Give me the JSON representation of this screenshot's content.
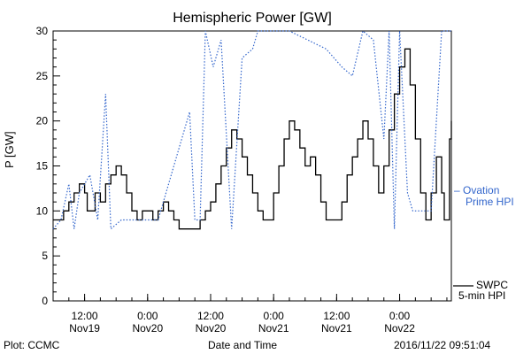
{
  "chart_data": {
    "type": "line",
    "title": "Hemispheric Power [GW]",
    "ylabel": "P [GW]",
    "xlabel": "Date and Time",
    "ylim": [
      0,
      30
    ],
    "yticks": [
      0,
      5,
      10,
      15,
      20,
      25,
      30
    ],
    "xlim": [
      "2016-11-19 06:00",
      "2016-11-22 09:51"
    ],
    "xticks": [
      {
        "t": "2016-11-19 12:00",
        "time": "12:00",
        "date": "Nov19"
      },
      {
        "t": "2016-11-20 00:00",
        "time": "0:00",
        "date": "Nov20"
      },
      {
        "t": "2016-11-20 12:00",
        "time": "12:00",
        "date": "Nov20"
      },
      {
        "t": "2016-11-21 00:00",
        "time": "0:00",
        "date": "Nov21"
      },
      {
        "t": "2016-11-21 12:00",
        "time": "12:00",
        "date": "Nov21"
      },
      {
        "t": "2016-11-22 00:00",
        "time": "0:00",
        "date": "Nov22"
      }
    ],
    "series": [
      {
        "name": "SWPC 5-min HPI",
        "color": "#000000",
        "style": "solid-step",
        "points": [
          [
            "2016-11-19 06:00",
            9
          ],
          [
            "2016-11-19 07:00",
            9
          ],
          [
            "2016-11-19 08:00",
            10
          ],
          [
            "2016-11-19 09:00",
            11
          ],
          [
            "2016-11-19 10:00",
            12
          ],
          [
            "2016-11-19 11:00",
            13
          ],
          [
            "2016-11-19 12:00",
            12
          ],
          [
            "2016-11-19 12:30",
            10
          ],
          [
            "2016-11-19 14:00",
            12
          ],
          [
            "2016-11-19 15:00",
            11
          ],
          [
            "2016-11-19 16:00",
            13
          ],
          [
            "2016-11-19 17:00",
            14
          ],
          [
            "2016-11-19 18:00",
            15
          ],
          [
            "2016-11-19 19:00",
            14
          ],
          [
            "2016-11-19 20:00",
            12
          ],
          [
            "2016-11-19 21:00",
            10
          ],
          [
            "2016-11-19 22:00",
            9
          ],
          [
            "2016-11-19 23:00",
            10
          ],
          [
            "2016-11-20 00:00",
            10
          ],
          [
            "2016-11-20 01:00",
            9
          ],
          [
            "2016-11-20 02:00",
            10
          ],
          [
            "2016-11-20 03:00",
            11
          ],
          [
            "2016-11-20 04:00",
            10
          ],
          [
            "2016-11-20 05:00",
            9
          ],
          [
            "2016-11-20 06:00",
            8
          ],
          [
            "2016-11-20 09:00",
            8
          ],
          [
            "2016-11-20 10:00",
            9
          ],
          [
            "2016-11-20 11:00",
            10
          ],
          [
            "2016-11-20 12:00",
            11
          ],
          [
            "2016-11-20 13:00",
            13
          ],
          [
            "2016-11-20 14:00",
            15
          ],
          [
            "2016-11-20 15:00",
            17
          ],
          [
            "2016-11-20 16:00",
            19
          ],
          [
            "2016-11-20 17:00",
            18
          ],
          [
            "2016-11-20 18:00",
            16
          ],
          [
            "2016-11-20 19:00",
            14
          ],
          [
            "2016-11-20 20:00",
            12
          ],
          [
            "2016-11-20 21:00",
            10
          ],
          [
            "2016-11-20 22:00",
            9
          ],
          [
            "2016-11-21 00:00",
            12
          ],
          [
            "2016-11-21 01:00",
            15
          ],
          [
            "2016-11-21 02:00",
            18
          ],
          [
            "2016-11-21 03:00",
            20
          ],
          [
            "2016-11-21 04:00",
            19
          ],
          [
            "2016-11-21 05:00",
            17
          ],
          [
            "2016-11-21 06:00",
            15
          ],
          [
            "2016-11-21 07:00",
            16
          ],
          [
            "2016-11-21 08:00",
            14
          ],
          [
            "2016-11-21 09:00",
            11
          ],
          [
            "2016-11-21 10:00",
            9
          ],
          [
            "2016-11-21 12:00",
            9
          ],
          [
            "2016-11-21 13:00",
            11
          ],
          [
            "2016-11-21 14:00",
            14
          ],
          [
            "2016-11-21 15:00",
            16
          ],
          [
            "2016-11-21 16:00",
            18
          ],
          [
            "2016-11-21 17:00",
            20
          ],
          [
            "2016-11-21 18:00",
            18
          ],
          [
            "2016-11-21 19:00",
            15
          ],
          [
            "2016-11-21 20:00",
            12
          ],
          [
            "2016-11-21 21:00",
            15
          ],
          [
            "2016-11-21 22:00",
            19
          ],
          [
            "2016-11-21 23:00",
            23
          ],
          [
            "2016-11-22 00:00",
            26
          ],
          [
            "2016-11-22 01:00",
            28
          ],
          [
            "2016-11-22 02:00",
            24
          ],
          [
            "2016-11-22 03:00",
            18
          ],
          [
            "2016-11-22 04:00",
            12
          ],
          [
            "2016-11-22 05:00",
            9
          ],
          [
            "2016-11-22 06:00",
            12
          ],
          [
            "2016-11-22 07:00",
            16
          ],
          [
            "2016-11-22 08:00",
            12
          ],
          [
            "2016-11-22 08:30",
            9
          ],
          [
            "2016-11-22 09:00",
            9
          ],
          [
            "2016-11-22 09:30",
            18
          ],
          [
            "2016-11-22 09:51",
            20
          ]
        ]
      },
      {
        "name": "Ovation Prime HPI",
        "color": "#3366cc",
        "style": "dotted",
        "points": [
          [
            "2016-11-19 06:00",
            8
          ],
          [
            "2016-11-19 07:30",
            9
          ],
          [
            "2016-11-19 09:00",
            13
          ],
          [
            "2016-11-19 10:00",
            8
          ],
          [
            "2016-11-19 11:00",
            12
          ],
          [
            "2016-11-19 13:00",
            14
          ],
          [
            "2016-11-19 14:30",
            9
          ],
          [
            "2016-11-19 16:00",
            23
          ],
          [
            "2016-11-19 17:00",
            8
          ],
          [
            "2016-11-19 19:00",
            9
          ],
          [
            "2016-11-20 02:00",
            9
          ],
          [
            "2016-11-20 08:00",
            21
          ],
          [
            "2016-11-20 09:00",
            9
          ],
          [
            "2016-11-20 10:00",
            9
          ],
          [
            "2016-11-20 11:00",
            30
          ],
          [
            "2016-11-20 12:30",
            26
          ],
          [
            "2016-11-20 14:00",
            29
          ],
          [
            "2016-11-20 16:00",
            8
          ],
          [
            "2016-11-20 18:00",
            27
          ],
          [
            "2016-11-20 20:00",
            28
          ],
          [
            "2016-11-20 21:00",
            30
          ],
          [
            "2016-11-21 03:00",
            30
          ],
          [
            "2016-11-21 10:00",
            28
          ],
          [
            "2016-11-21 13:00",
            26
          ],
          [
            "2016-11-21 15:00",
            25
          ],
          [
            "2016-11-21 17:00",
            30
          ],
          [
            "2016-11-21 19:00",
            29
          ],
          [
            "2016-11-21 21:00",
            18
          ],
          [
            "2016-11-21 22:00",
            30
          ],
          [
            "2016-11-21 23:00",
            8
          ],
          [
            "2016-11-22 00:00",
            30
          ],
          [
            "2016-11-22 01:30",
            12
          ],
          [
            "2016-11-22 02:30",
            10
          ],
          [
            "2016-11-22 04:00",
            10
          ],
          [
            "2016-11-22 06:00",
            10
          ],
          [
            "2016-11-22 07:00",
            20
          ],
          [
            "2016-11-22 08:00",
            30
          ],
          [
            "2016-11-22 09:00",
            30
          ],
          [
            "2016-11-22 09:51",
            30
          ]
        ]
      }
    ],
    "grid": false
  },
  "labels": {
    "title": "Hemispheric Power [GW]",
    "ylabel": "P [GW]",
    "xlabel": "Date and Time",
    "credit": "Plot: CCMC",
    "timestamp": "2016/11/22 09:51:04",
    "legend_ovation_line1": "– Ovation",
    "legend_ovation_line2": "Prime HPI",
    "legend_swpc_line1": "SWPC",
    "legend_swpc_line2": "5-min HPI"
  }
}
